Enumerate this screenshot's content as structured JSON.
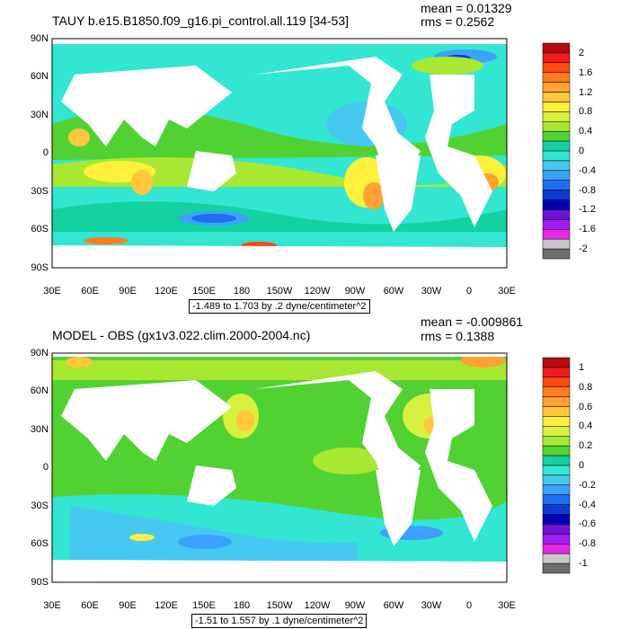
{
  "panels": [
    {
      "title": "TAUY b.e15.B1850.f09_g16.pi_control.all.119 [34-53]",
      "mean": "mean = 0.01329",
      "rms": "rms = 0.2562",
      "range": "-1.489 to 1.703 by .2 dyne/centimeter^2",
      "colorbar_labels": [
        "2",
        "1.6",
        "1.2",
        "0.8",
        "0.4",
        "0",
        "-0.4",
        "-0.8",
        "-1.2",
        "-1.6",
        "-2"
      ],
      "colorbar_colors": [
        "#b40c0c",
        "#ee1c1c",
        "#ff4a12",
        "#ff7d20",
        "#ffa232",
        "#ffc83c",
        "#fff03c",
        "#d8f040",
        "#a8e832",
        "#52d232",
        "#14d2a0",
        "#32e6d2",
        "#46c8f0",
        "#3ca0ff",
        "#1e6ef0",
        "#0a3cd2",
        "#0000b4",
        "#6e14d2",
        "#a01ef0",
        "#e628e6",
        "#c8c8c8",
        "#6e6e6e"
      ]
    },
    {
      "title": "MODEL - OBS (gx1v3.022.clim.2000-2004.nc)",
      "mean": "mean = -0.009861",
      "rms": "rms = 0.1388",
      "range": "-1.51 to 1.557 by .1 dyne/centimeter^2",
      "colorbar_labels": [
        "1",
        "0.8",
        "0.6",
        "0.4",
        "0.2",
        "0",
        "-0.2",
        "-0.4",
        "-0.6",
        "-0.8",
        "-1"
      ],
      "colorbar_colors": [
        "#b40c0c",
        "#ee1c1c",
        "#ff4a12",
        "#ff7d20",
        "#ffa232",
        "#ffc83c",
        "#fff03c",
        "#d8f040",
        "#a8e832",
        "#52d232",
        "#14d2a0",
        "#32e6d2",
        "#46c8f0",
        "#3ca0ff",
        "#1e6ef0",
        "#0a3cd2",
        "#0000b4",
        "#6e14d2",
        "#a01ef0",
        "#e628e6",
        "#c8c8c8",
        "#6e6e6e"
      ]
    }
  ],
  "axes": {
    "lon_labels": [
      "30E",
      "60E",
      "90E",
      "120E",
      "150E",
      "180",
      "150W",
      "120W",
      "90W",
      "60W",
      "30W",
      "0",
      "30E"
    ],
    "lat_labels": [
      "90N",
      "60N",
      "30N",
      "0",
      "30S",
      "60S",
      "90S"
    ]
  },
  "colors": {
    "ocean_base": "#32e6d2",
    "land": "#ffffff",
    "frame": "#000000"
  }
}
